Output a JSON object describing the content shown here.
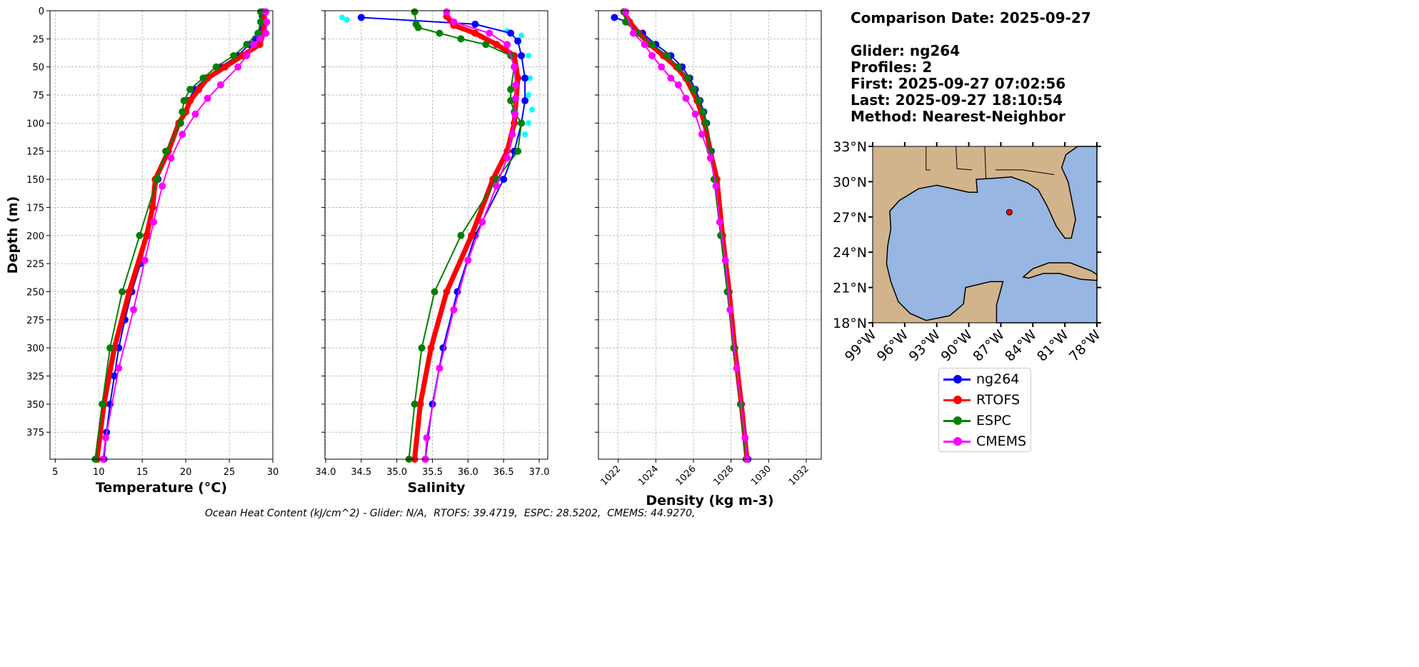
{
  "info": {
    "comparison_date": "Comparison Date: 2025-09-27",
    "glider": "Glider: ng264",
    "profiles": "Profiles: 2",
    "first": "First: 2025-09-27 07:02:56",
    "last": "Last: 2025-09-27 18:10:54",
    "method": "Method: Nearest-Neighbor"
  },
  "footer": "Ocean Heat Content (kJ/cm^2) - Glider: N/A,  RTOFS: 39.4719,  ESPC: 28.5202,  CMEMS: 44.9270,",
  "legend": [
    {
      "name": "ng264",
      "color": "#0000ff"
    },
    {
      "name": "RTOFS",
      "color": "#ff0000"
    },
    {
      "name": "ESPC",
      "color": "#008000"
    },
    {
      "name": "CMEMS",
      "color": "#ff00ff"
    }
  ],
  "chart_data": [
    {
      "type": "line",
      "xlabel": "Temperature (°C)",
      "ylabel": "Depth (m)",
      "xlim": [
        4.4,
        30
      ],
      "ylim": [
        399,
        0
      ],
      "xticks": [
        "5",
        "10",
        "15",
        "20",
        "25",
        "30"
      ],
      "yticks": [
        "0",
        "25",
        "50",
        "75",
        "100",
        "125",
        "150",
        "175",
        "200",
        "225",
        "250",
        "275",
        "300",
        "325",
        "350",
        "375"
      ],
      "grid": true,
      "series": [
        {
          "name": "ng264",
          "color": "#0000ff",
          "depth": [
            1,
            5,
            10,
            15,
            20,
            25,
            30,
            40,
            50,
            60,
            70,
            80,
            90,
            100,
            125,
            150,
            175,
            200,
            225,
            250,
            275,
            300,
            325,
            350,
            375,
            399
          ],
          "values": [
            28.8,
            28.8,
            28.8,
            28.8,
            28.7,
            28.0,
            27.3,
            26.0,
            24.0,
            22.3,
            21.0,
            20.3,
            19.8,
            19.4,
            17.8,
            16.8,
            16.2,
            15.6,
            14.8,
            13.8,
            13.0,
            12.3,
            11.8,
            11.3,
            10.9,
            10.6
          ]
        },
        {
          "name": "RTOFS",
          "color": "#ff0000",
          "depth": [
            1,
            10,
            20,
            30,
            40,
            50,
            60,
            70,
            80,
            90,
            100,
            125,
            150,
            175,
            200,
            250,
            300,
            350,
            399
          ],
          "values": [
            29.0,
            29.0,
            28.9,
            28.5,
            26.5,
            24.5,
            22.5,
            21.5,
            20.5,
            20.0,
            19.2,
            18.0,
            16.5,
            16.2,
            15.5,
            13.5,
            11.8,
            10.6,
            9.8
          ]
        },
        {
          "name": "ESPC",
          "color": "#008000",
          "depth": [
            1,
            10,
            20,
            30,
            40,
            50,
            60,
            70,
            80,
            90,
            100,
            125,
            150,
            200,
            250,
            300,
            350,
            399
          ],
          "values": [
            28.6,
            28.6,
            28.3,
            27.0,
            25.5,
            23.5,
            22.0,
            20.5,
            19.8,
            19.6,
            19.4,
            17.7,
            16.7,
            14.7,
            12.7,
            11.3,
            10.4,
            9.6
          ]
        },
        {
          "name": "CMEMS",
          "color": "#ff00ff",
          "depth": [
            1,
            10,
            20,
            25,
            30,
            40,
            50,
            66,
            78,
            92,
            110,
            131,
            156,
            188,
            222,
            266,
            318,
            380,
            399
          ],
          "values": [
            29.2,
            29.3,
            29.2,
            28.5,
            27.8,
            27.0,
            26.0,
            24.0,
            22.5,
            21.1,
            19.6,
            18.3,
            17.3,
            16.3,
            15.3,
            14.0,
            12.3,
            10.8,
            10.5
          ]
        }
      ]
    },
    {
      "type": "line",
      "xlabel": "Salinity",
      "ylabel": "",
      "xlim": [
        33.99,
        37.12
      ],
      "ylim": [
        399,
        0
      ],
      "xticks": [
        "34.0",
        "34.5",
        "35.0",
        "35.5",
        "36.0",
        "36.5",
        "37.0"
      ],
      "grid": true,
      "series": [
        {
          "name": "ng264 raw",
          "color": "#00ffff",
          "markers_only": true,
          "depth": [
            6,
            8,
            18,
            22,
            40,
            60,
            75,
            88,
            100,
            110
          ],
          "values": [
            34.23,
            34.3,
            36.55,
            36.75,
            36.85,
            36.87,
            36.85,
            36.9,
            36.85,
            36.8
          ]
        },
        {
          "name": "ng264",
          "color": "#0000ff",
          "depth": [
            6,
            12,
            20,
            27,
            40,
            60,
            80,
            100,
            125,
            150,
            200,
            250,
            300,
            350,
            399
          ],
          "values": [
            34.5,
            36.1,
            36.6,
            36.7,
            36.75,
            36.8,
            36.8,
            36.75,
            36.65,
            36.5,
            36.1,
            35.85,
            35.65,
            35.5,
            35.4
          ]
        },
        {
          "name": "RTOFS",
          "color": "#ff0000",
          "depth": [
            5,
            13,
            20,
            30,
            40,
            60,
            100,
            125,
            150,
            200,
            250,
            300,
            350,
            399
          ],
          "values": [
            35.7,
            35.8,
            36.1,
            36.4,
            36.65,
            36.7,
            36.65,
            36.55,
            36.35,
            36.05,
            35.7,
            35.48,
            35.33,
            35.25
          ]
        },
        {
          "name": "ESPC",
          "color": "#008000",
          "depth": [
            1,
            12,
            15,
            20,
            25,
            30,
            40,
            50,
            70,
            80,
            90,
            100,
            125,
            150,
            200,
            250,
            300,
            350,
            399
          ],
          "values": [
            35.25,
            35.27,
            35.3,
            35.6,
            35.9,
            36.25,
            36.6,
            36.65,
            36.6,
            36.6,
            36.65,
            36.75,
            36.7,
            36.4,
            35.9,
            35.53,
            35.35,
            35.25,
            35.17
          ]
        },
        {
          "name": "CMEMS",
          "color": "#ff00ff",
          "depth": [
            1,
            10,
            20,
            30,
            50,
            66,
            78,
            92,
            110,
            131,
            156,
            188,
            222,
            266,
            318,
            380,
            399
          ],
          "values": [
            35.7,
            35.8,
            36.3,
            36.55,
            36.65,
            36.67,
            36.67,
            36.66,
            36.62,
            36.55,
            36.4,
            36.2,
            36.0,
            35.8,
            35.6,
            35.42,
            35.4
          ]
        }
      ]
    },
    {
      "type": "line",
      "xlabel": "Density (kg m-3)",
      "ylabel": "",
      "xlim": [
        1020.95,
        1032.8
      ],
      "ylim": [
        399,
        0
      ],
      "xticks": [
        "1022",
        "1024",
        "1026",
        "1028",
        "1030",
        "1032"
      ],
      "grid": true,
      "series": [
        {
          "name": "ng264",
          "color": "#0000ff",
          "depth": [
            6,
            10,
            20,
            30,
            40,
            50,
            60,
            70,
            80,
            90,
            100,
            125,
            150,
            200,
            250,
            300,
            350,
            399
          ],
          "values": [
            1021.8,
            1022.5,
            1023.3,
            1024.0,
            1024.8,
            1025.4,
            1025.8,
            1026.1,
            1026.35,
            1026.55,
            1026.7,
            1026.95,
            1027.15,
            1027.5,
            1027.85,
            1028.15,
            1028.55,
            1028.9
          ]
        },
        {
          "name": "RTOFS",
          "color": "#ff0000",
          "depth": [
            1,
            10,
            20,
            30,
            40,
            50,
            60,
            80,
            100,
            125,
            150,
            200,
            250,
            300,
            350,
            399
          ],
          "values": [
            1022.3,
            1022.6,
            1023.1,
            1023.7,
            1024.4,
            1025.1,
            1025.6,
            1026.2,
            1026.6,
            1026.9,
            1027.25,
            1027.55,
            1027.9,
            1028.2,
            1028.55,
            1028.85
          ]
        },
        {
          "name": "ESPC",
          "color": "#008000",
          "depth": [
            1,
            10,
            20,
            30,
            40,
            50,
            60,
            70,
            80,
            90,
            100,
            125,
            150,
            200,
            250,
            300,
            350,
            399
          ],
          "values": [
            1022.3,
            1022.4,
            1023.0,
            1023.8,
            1024.6,
            1025.2,
            1025.7,
            1026.0,
            1026.3,
            1026.5,
            1026.65,
            1026.9,
            1027.1,
            1027.45,
            1027.8,
            1028.15,
            1028.5,
            1028.8
          ]
        },
        {
          "name": "CMEMS",
          "color": "#ff00ff",
          "depth": [
            1,
            20,
            30,
            40,
            50,
            60,
            66,
            78,
            92,
            110,
            131,
            156,
            188,
            222,
            266,
            318,
            380,
            399
          ],
          "values": [
            1022.4,
            1022.8,
            1023.4,
            1023.8,
            1024.3,
            1024.8,
            1025.2,
            1025.6,
            1026.1,
            1026.45,
            1026.9,
            1027.2,
            1027.4,
            1027.7,
            1027.95,
            1028.3,
            1028.75,
            1028.85
          ]
        }
      ]
    }
  ],
  "map": {
    "lon_range": [
      -99,
      -78
    ],
    "lat_range": [
      18,
      33
    ],
    "lat_ticks": [
      "18°N",
      "21°N",
      "24°N",
      "27°N",
      "30°N",
      "33°N"
    ],
    "lon_ticks": [
      "99°W",
      "96°W",
      "93°W",
      "90°W",
      "87°W",
      "84°W",
      "81°W",
      "78°W"
    ],
    "glider_lon": -86.2,
    "glider_lat": 27.4,
    "land_color": "#d2b48c",
    "ocean_color": "#97b6e1"
  }
}
